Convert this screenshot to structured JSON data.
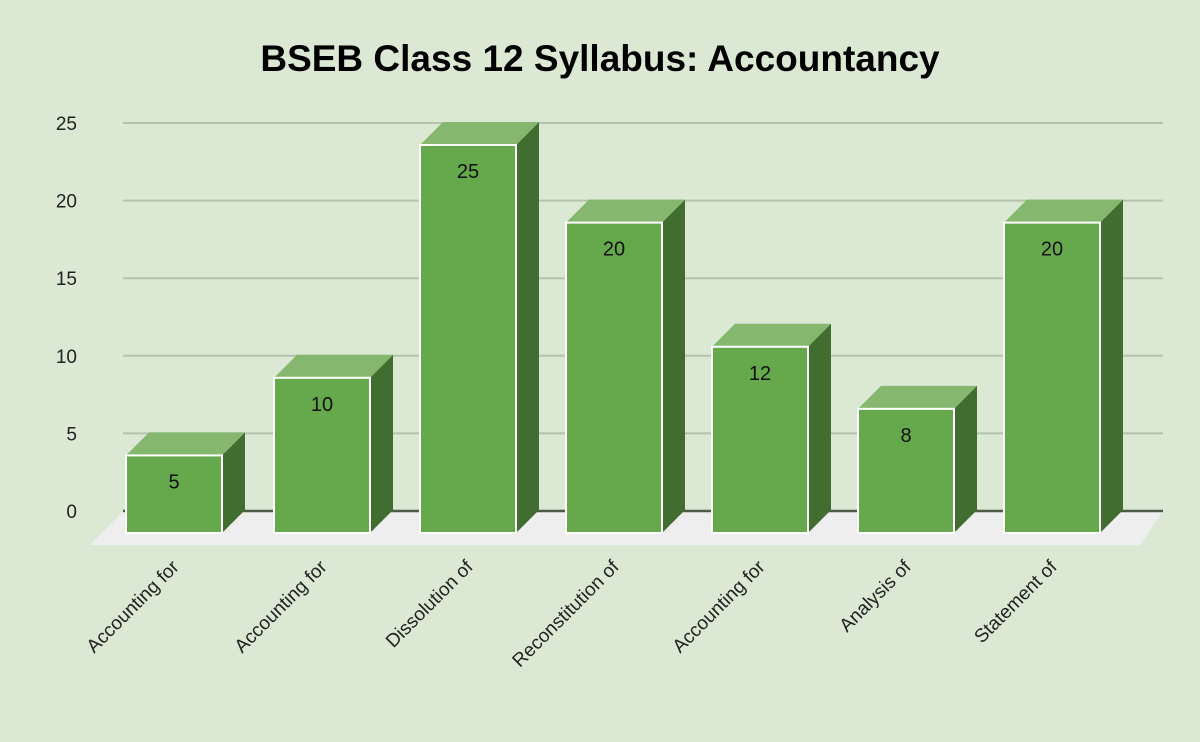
{
  "chart_data": {
    "type": "bar",
    "title": "BSEB Class 12 Syllabus: Accountancy",
    "xlabel": "",
    "ylabel": "",
    "ylim": [
      0,
      25
    ],
    "yticks": [
      0,
      5,
      10,
      15,
      20,
      25
    ],
    "grid": true,
    "legend": null,
    "style": "3d",
    "categories": [
      "Accounting for",
      "Accounting for",
      "Dissolution of",
      "Reconstitution of",
      "Accounting for",
      "Analysis of",
      "Statement of"
    ],
    "values": [
      5,
      10,
      25,
      20,
      12,
      8,
      20
    ],
    "data_labels": [
      "5",
      "10",
      "25",
      "20",
      "12",
      "8",
      "20"
    ]
  },
  "colors": {
    "background": "#dbe9d4",
    "bar_front": "#66a84c",
    "bar_top": "#85b86e",
    "bar_side": "#416d31",
    "gridline": "#b3c3ac",
    "floor": "#eeeeee",
    "baseline": "#4d5a47"
  }
}
